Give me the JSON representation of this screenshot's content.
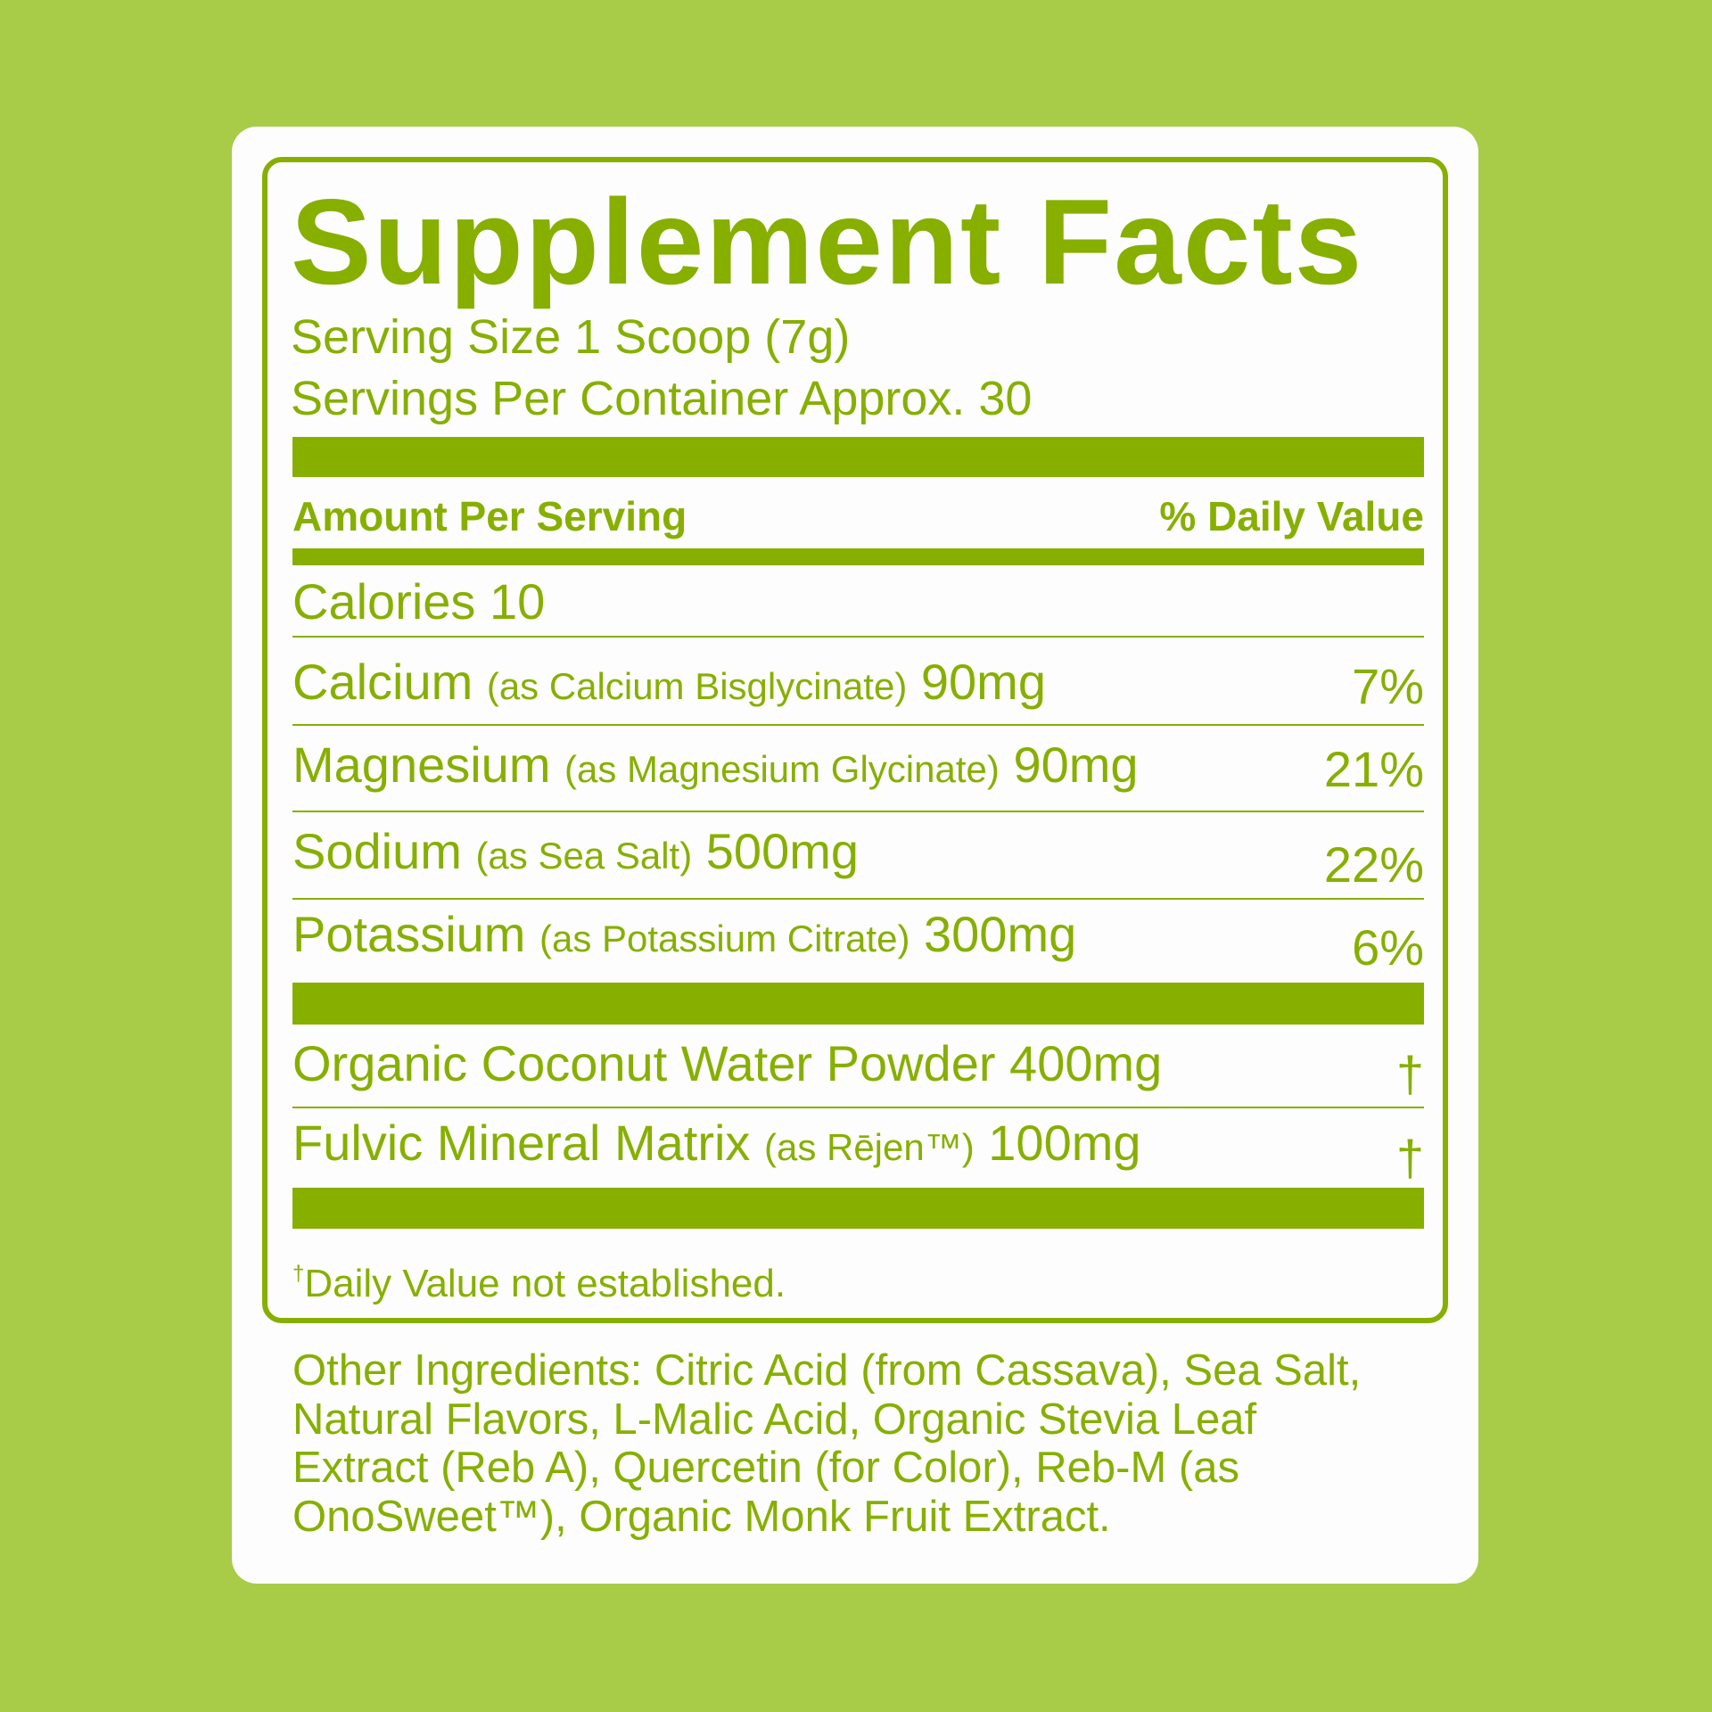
{
  "colors": {
    "background": "#a8cc48",
    "label_green": "#87af00",
    "card": "#fdfdfd"
  },
  "title": "Supplement Facts",
  "serving_size": "Serving Size 1 Scoop (7g)",
  "servings_per_container": "Servings Per Container Approx. 30",
  "header": {
    "amount": "Amount Per Serving",
    "dv": "% Daily Value"
  },
  "calories": "Calories 10",
  "nutrients": [
    {
      "name": "Calcium",
      "source": "(as Calcium Bisglycinate)",
      "amount": "90mg",
      "dv": "7%"
    },
    {
      "name": "Magnesium",
      "source": "(as Magnesium Glycinate)",
      "amount": "90mg",
      "dv": "21%"
    },
    {
      "name": "Sodium",
      "source": "(as Sea Salt)",
      "amount": "500mg",
      "dv": "22%"
    },
    {
      "name": "Potassium",
      "source": "(as Potassium Citrate)",
      "amount": "300mg",
      "dv": "6%"
    }
  ],
  "other_nutrients": [
    {
      "name": "Organic Coconut Water Powder",
      "source": "",
      "amount": "400mg",
      "dv": "†"
    },
    {
      "name": "Fulvic Mineral Matrix",
      "source": "(as Rējen™)",
      "amount": "100mg",
      "dv": "†"
    }
  ],
  "footnote": {
    "mark": "†",
    "text": "Daily Value not established."
  },
  "other_ingredients": "Other Ingredients: Citric Acid (from Cassava), Sea Salt, Natural Flavors, L-Malic Acid, Organic Stevia Leaf Extract (Reb A), Quercetin (for Color), Reb-M (as OnoSweet™), Organic Monk Fruit Extract."
}
